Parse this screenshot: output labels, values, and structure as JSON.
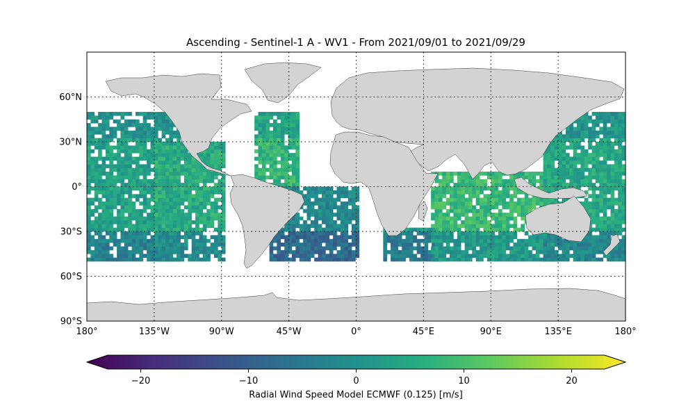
{
  "title": "Ascending - Sentinel-1 A - WV1 - From 2021/09/01 to 2021/09/29",
  "map": {
    "projection": "PlateCarree",
    "lon_range": [
      -180,
      180
    ],
    "lat_range": [
      -90,
      90
    ],
    "land_color": "#d3d3d3",
    "coast_color": "#333333",
    "grid": true,
    "grid_style": "dotted",
    "data_lat_range": [
      -50,
      50
    ],
    "lat_ticks": [
      {
        "value": 60,
        "label": "60°N"
      },
      {
        "value": 30,
        "label": "30°N"
      },
      {
        "value": 0,
        "label": "0°"
      },
      {
        "value": -30,
        "label": "30°S"
      },
      {
        "value": -60,
        "label": "60°S"
      },
      {
        "value": -90,
        "label": "90°S"
      }
    ],
    "lon_ticks": [
      {
        "value": -180,
        "label": "180°"
      },
      {
        "value": -135,
        "label": "135°W"
      },
      {
        "value": -90,
        "label": "90°W"
      },
      {
        "value": -45,
        "label": "45°W"
      },
      {
        "value": 0,
        "label": "0°"
      },
      {
        "value": 45,
        "label": "45°E"
      },
      {
        "value": 90,
        "label": "90°E"
      },
      {
        "value": 135,
        "label": "135°E"
      },
      {
        "value": 180,
        "label": "180°"
      }
    ]
  },
  "colorbar": {
    "label": "Radial Wind Speed Model ECMWF (0.125) [m/s]",
    "colormap": "viridis",
    "range": [
      -25,
      25
    ],
    "extend": "both",
    "ticks": [
      {
        "value": -20,
        "label": "−20"
      },
      {
        "value": -10,
        "label": "−10"
      },
      {
        "value": 0,
        "label": "0"
      },
      {
        "value": 10,
        "label": "10"
      },
      {
        "value": 20,
        "label": "20"
      }
    ]
  },
  "chart_data": {
    "type": "heatmap",
    "title": "Ascending - Sentinel-1 A - WV1 - From 2021/09/01 to 2021/09/29",
    "variable": "Radial Wind Speed Model ECMWF (0.125) [m/s]",
    "value_range": [
      -25,
      25
    ],
    "typical_values": "mostly between about -12 and 12 m/s; lower (purple/blue) south of 30°S and in the North Pacific, higher (green) in the tropics and southern Indian Ocean",
    "swath_bands": [
      {
        "region": "North Pacific (east)",
        "lon": [
          -180,
          -118
        ],
        "lat": [
          -50,
          50
        ],
        "typical": 2
      },
      {
        "region": "Eastern Pacific tracks",
        "lon": [
          -135,
          -88
        ],
        "lat": [
          -50,
          30
        ],
        "typical": 4
      },
      {
        "region": "North Atlantic tracks",
        "lon": [
          -68,
          -40
        ],
        "lat": [
          -10,
          48
        ],
        "typical": 6
      },
      {
        "region": "South Atlantic",
        "lon": [
          -58,
          2
        ],
        "lat": [
          -50,
          0
        ],
        "typical": -3
      },
      {
        "region": "South Atlantic / SW Indian",
        "lon": [
          18,
          58
        ],
        "lat": [
          -50,
          -28
        ],
        "typical": 0
      },
      {
        "region": "Indian Ocean",
        "lon": [
          50,
          135
        ],
        "lat": [
          -50,
          10
        ],
        "typical": 7
      },
      {
        "region": "Western Pacific",
        "lon": [
          125,
          180
        ],
        "lat": [
          -50,
          50
        ],
        "typical": 3
      }
    ]
  }
}
